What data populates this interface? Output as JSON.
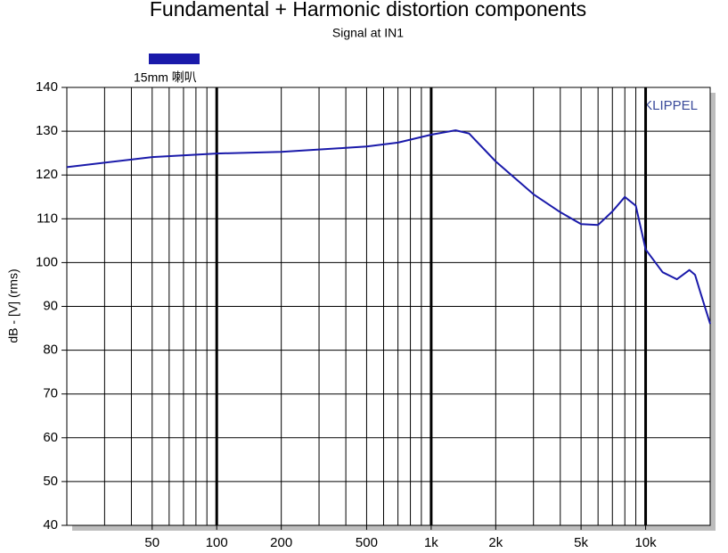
{
  "chart_data": {
    "type": "line",
    "title": "Fundamental + Harmonic distortion components",
    "subtitle": "Signal at IN1",
    "y_label": "dB - [V]  (rms)",
    "watermark": "KLIPPEL",
    "x_log": true,
    "xlim": [
      20,
      20000
    ],
    "ylim": [
      40,
      140
    ],
    "xticks": [
      50,
      100,
      200,
      500,
      {
        "value": 1000,
        "label": "1k"
      },
      {
        "value": 2000,
        "label": "2k"
      },
      {
        "value": 5000,
        "label": "5k"
      },
      {
        "value": 10000,
        "label": "10k"
      }
    ],
    "yticks": [
      40,
      50,
      60,
      70,
      80,
      90,
      100,
      110,
      120,
      130,
      140
    ],
    "xgrid": [
      30,
      40,
      50,
      60,
      70,
      80,
      90,
      100,
      200,
      300,
      400,
      500,
      600,
      700,
      800,
      900,
      1000,
      2000,
      3000,
      4000,
      5000,
      6000,
      7000,
      8000,
      9000,
      10000
    ],
    "xgrid_major": [
      100,
      1000,
      10000
    ],
    "grid": true,
    "x": [
      20,
      50,
      100,
      200,
      400,
      500,
      700,
      1000,
      1300,
      1500,
      2000,
      3000,
      4000,
      5000,
      6000,
      7000,
      8000,
      9000,
      10000,
      12000,
      14000,
      16000,
      17000,
      18000,
      20000
    ],
    "series": [
      {
        "name": "15mm 喇叭",
        "color": "#1a1aaa",
        "values": [
          121.8,
          124.1,
          124.9,
          125.3,
          126.2,
          126.5,
          127.4,
          129.2,
          130.2,
          129.5,
          123.1,
          115.6,
          111.5,
          108.8,
          108.6,
          111.7,
          115,
          113,
          103,
          97.8,
          96.2,
          98.3,
          97.2,
          93.2,
          86
        ]
      }
    ]
  }
}
